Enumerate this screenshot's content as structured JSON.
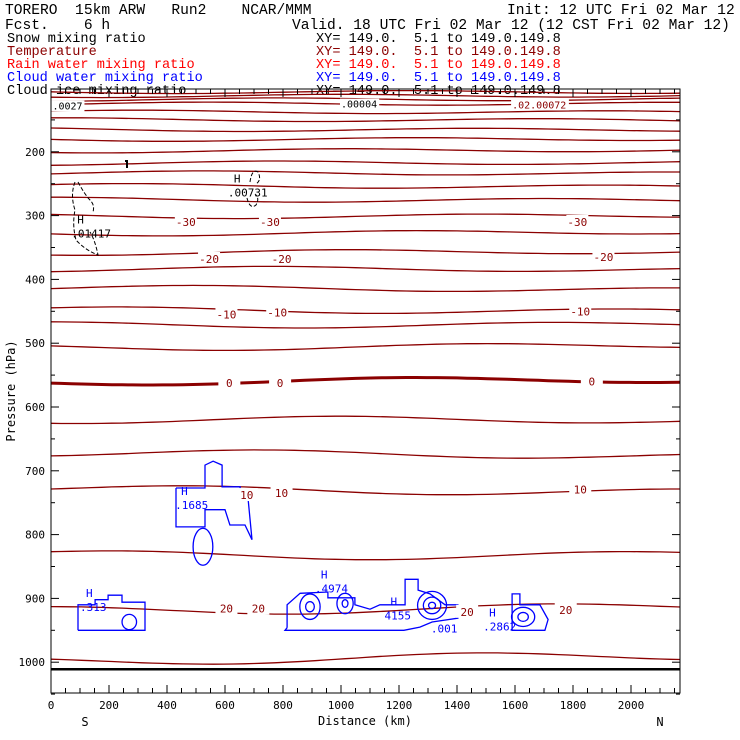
{
  "header": {
    "title": "TORERO  15km ARW   Run2    NCAR/MMM",
    "init": "Init: 12 UTC Fri 02 Mar 12",
    "fcst": "Fcst.    6 h",
    "valid": "Valid. 18 UTC Fri 02 Mar 12 (12 CST Fri 02 Mar 12)"
  },
  "fields": [
    {
      "name": "Snow mixing ratio",
      "xy": "XY= 149.0.  5.1 to 149.0.149.8",
      "color": "#000000"
    },
    {
      "name": "Temperature",
      "xy": "XY= 149.0.  5.1 to 149.0.149.8",
      "color": "#8b0000"
    },
    {
      "name": "Rain water mixing ratio",
      "xy": "XY= 149.0.  5.1 to 149.0.149.8",
      "color": "#ff0000"
    },
    {
      "name": "Cloud water mixing ratio",
      "xy": "XY= 149.0.  5.1 to 149.0.149.8",
      "color": "#0000ff"
    },
    {
      "name": "Cloud ice mixing ratio",
      "xy": "XY= 149.0.  5.1 to 149.0.149.8",
      "color": "#000000"
    }
  ],
  "chart_data": {
    "type": "contour-cross-section",
    "xlabel": "Distance (km)",
    "ylabel": "Pressure (hPa)",
    "xlim": [
      0,
      2170
    ],
    "ylim": [
      1050,
      100
    ],
    "xticks": [
      "0",
      "200",
      "400",
      "600",
      "800",
      "1000",
      "1200",
      "1400",
      "1600",
      "1800",
      "2000"
    ],
    "xtick_values": [
      0,
      200,
      400,
      600,
      800,
      1000,
      1200,
      1400,
      1600,
      1800,
      2000
    ],
    "yticks": [
      "200",
      "300",
      "400",
      "500",
      "600",
      "700",
      "800",
      "900",
      "1000"
    ],
    "ytick_values": [
      200,
      300,
      400,
      500,
      600,
      700,
      800,
      900,
      1000
    ],
    "left_end": "S",
    "right_end": "N",
    "ground_hPa": 1011,
    "isotherms_hPa": [
      106,
      112,
      118,
      125,
      138,
      150,
      165,
      180,
      198,
      218,
      234,
      254,
      275,
      300,
      327,
      358,
      385,
      415,
      448,
      470,
      505,
      560,
      622,
      675,
      730,
      830,
      915,
      995
    ],
    "thick_isotherm_hPa": 560,
    "isotherm_labels": [
      {
        "text": "-30",
        "km": 465,
        "hPa": 310
      },
      {
        "text": "-30",
        "km": 755,
        "hPa": 310
      },
      {
        "text": "-30",
        "km": 1815,
        "hPa": 310
      },
      {
        "text": "-20",
        "km": 545,
        "hPa": 368
      },
      {
        "text": "-20",
        "km": 795,
        "hPa": 368
      },
      {
        "text": "-20",
        "km": 1905,
        "hPa": 365
      },
      {
        "text": "-10",
        "km": 605,
        "hPa": 455
      },
      {
        "text": "-10",
        "km": 780,
        "hPa": 452
      },
      {
        "text": "-10",
        "km": 1825,
        "hPa": 450
      },
      {
        "text": "0",
        "km": 615,
        "hPa": 562
      },
      {
        "text": "0",
        "km": 790,
        "hPa": 562
      },
      {
        "text": "0",
        "km": 1865,
        "hPa": 560
      },
      {
        "text": "10",
        "km": 675,
        "hPa": 738
      },
      {
        "text": "10",
        "km": 795,
        "hPa": 735
      },
      {
        "text": "10",
        "km": 1825,
        "hPa": 729
      },
      {
        "text": "20",
        "km": 605,
        "hPa": 916
      },
      {
        "text": "20",
        "km": 715,
        "hPa": 916
      },
      {
        "text": "20",
        "km": 1435,
        "hPa": 921
      },
      {
        "text": "20",
        "km": 1775,
        "hPa": 918
      }
    ],
    "top_labels": [
      {
        "text": ".0027",
        "km": 5,
        "hPa": 115,
        "color": "#000000"
      },
      {
        "text": ".00004",
        "km": 1000,
        "hPa": 112,
        "color": "#000000"
      },
      {
        "text": ".02.00072",
        "km": 1590,
        "hPa": 113,
        "color": "#8b0000"
      }
    ],
    "cloud_water_contours": [
      [
        [
          93,
          950
        ],
        [
          93,
          910
        ],
        [
          152,
          910
        ],
        [
          152,
          902
        ],
        [
          197,
          902
        ],
        [
          197,
          895
        ],
        [
          245,
          895
        ],
        [
          245,
          906
        ],
        [
          324,
          906
        ],
        [
          324,
          950
        ],
        [
          93,
          950
        ]
      ],
      [
        [
          431,
          727
        ],
        [
          531,
          727
        ],
        [
          531,
          691
        ],
        [
          559,
          685
        ],
        [
          590,
          691
        ],
        [
          590,
          725
        ],
        [
          652,
          725
        ],
        [
          652,
          741
        ],
        [
          679,
          741
        ],
        [
          693,
          808
        ],
        [
          669,
          785
        ],
        [
          617,
          785
        ],
        [
          600,
          761
        ],
        [
          531,
          761
        ],
        [
          531,
          788
        ],
        [
          431,
          788
        ],
        [
          431,
          727
        ]
      ],
      [
        [
          814,
          946
        ],
        [
          814,
          910
        ],
        [
          859,
          892
        ],
        [
          955,
          890
        ],
        [
          955,
          899
        ],
        [
          1048,
          899
        ],
        [
          1048,
          910
        ],
        [
          1100,
          917
        ],
        [
          1134,
          910
        ],
        [
          1221,
          910
        ],
        [
          1221,
          870
        ],
        [
          1266,
          870
        ],
        [
          1266,
          887
        ],
        [
          1307,
          893
        ],
        [
          1359,
          910
        ],
        [
          1403,
          910
        ],
        [
          1403,
          931
        ],
        [
          1314,
          937
        ],
        [
          1272,
          945
        ],
        [
          1217,
          950
        ],
        [
          807,
          950
        ],
        [
          814,
          946
        ]
      ],
      [
        [
          1590,
          945
        ],
        [
          1590,
          893
        ],
        [
          1617,
          893
        ],
        [
          1617,
          910
        ],
        [
          1686,
          910
        ],
        [
          1714,
          933
        ],
        [
          1703,
          950
        ],
        [
          1590,
          950
        ],
        [
          1590,
          945
        ]
      ]
    ],
    "cloud_water_rings": [
      {
        "km": 893,
        "hPa": 913,
        "dk": 35,
        "dp": 20
      },
      {
        "km": 893,
        "hPa": 913,
        "dk": 15,
        "dp": 8
      },
      {
        "km": 1014,
        "hPa": 908,
        "dk": 28,
        "dp": 16
      },
      {
        "km": 1014,
        "hPa": 908,
        "dk": 10,
        "dp": 6
      },
      {
        "km": 1314,
        "hPa": 911,
        "dk": 50,
        "dp": 22
      },
      {
        "km": 1314,
        "hPa": 911,
        "dk": 30,
        "dp": 13
      },
      {
        "km": 1314,
        "hPa": 911,
        "dk": 12,
        "dp": 5
      },
      {
        "km": 1628,
        "hPa": 929,
        "dk": 40,
        "dp": 15
      },
      {
        "km": 1628,
        "hPa": 929,
        "dk": 18,
        "dp": 7
      },
      {
        "km": 524,
        "hPa": 819,
        "dk": 34,
        "dp": 29
      },
      {
        "km": 270,
        "hPa": 937,
        "dk": 25,
        "dp": 12
      }
    ],
    "cloud_water_maxima": [
      {
        "label": "H",
        "value": ".313",
        "km": 100,
        "hPa": 917
      },
      {
        "label": "H",
        "value": ".1685",
        "km": 428,
        "hPa": 757
      },
      {
        "label": "H",
        "value": ".4974",
        "km": 910,
        "hPa": 888
      },
      {
        "label": "H",
        "value": "4155",
        "km": 1150,
        "hPa": 930
      },
      {
        "label": "",
        "value": ".001",
        "km": 1310,
        "hPa": 950
      },
      {
        "label": "H",
        "value": ".2862",
        "km": 1490,
        "hPa": 947
      }
    ],
    "cloud_ice_maxima": [
      {
        "label": "H",
        "value": ".00731",
        "km": 610,
        "hPa": 267
      },
      {
        "label": "H",
        "value": ".01417",
        "km": 70,
        "hPa": 331
      }
    ]
  }
}
